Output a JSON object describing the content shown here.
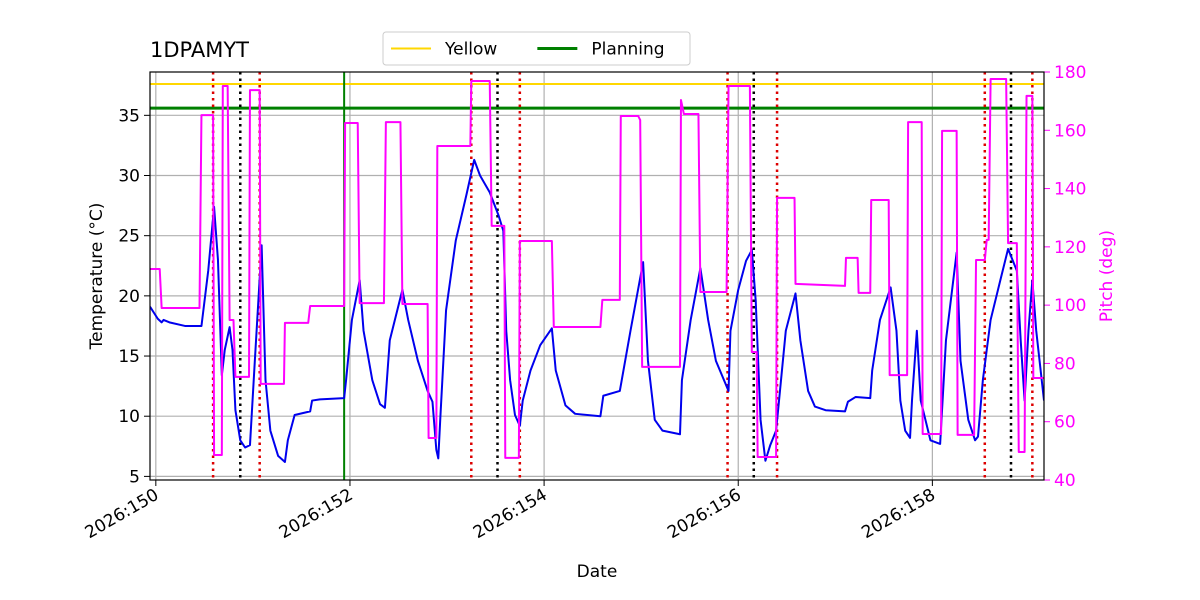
{
  "chart_data": {
    "type": "line",
    "title": "1DPAMYT",
    "xlabel": "Date",
    "ylabel": "Temperature (°C)",
    "y2label": "Pitch (deg)",
    "xlim": [
      149.94,
      159.15
    ],
    "xticks": [
      {
        "value": 150,
        "label": "2026:150"
      },
      {
        "value": 152,
        "label": "2026:152"
      },
      {
        "value": 154,
        "label": "2026:154"
      },
      {
        "value": 156,
        "label": "2026:156"
      },
      {
        "value": 158,
        "label": "2026:158"
      }
    ],
    "ylim": [
      4.7,
      38.6
    ],
    "yticks": [
      5,
      10,
      15,
      20,
      25,
      30,
      35
    ],
    "y2lim": [
      40,
      180
    ],
    "y2ticks": [
      40,
      60,
      80,
      100,
      120,
      140,
      160,
      180
    ],
    "y2color": "#ff00ff",
    "grid": true,
    "legend": "upper center",
    "hlines": [
      {
        "name": "Yellow",
        "value": 37.6,
        "color": "#ffd700",
        "width": 2
      },
      {
        "name": "Planning",
        "value": 35.6,
        "color": "#008000",
        "width": 3
      }
    ],
    "vlines": [
      {
        "x": 151.94,
        "color": "#008000",
        "style": "solid"
      },
      {
        "x": 150.59,
        "color": "#dd0000",
        "style": "dotted"
      },
      {
        "x": 151.07,
        "color": "#dd0000",
        "style": "dotted"
      },
      {
        "x": 153.25,
        "color": "#dd0000",
        "style": "dotted"
      },
      {
        "x": 153.75,
        "color": "#dd0000",
        "style": "dotted"
      },
      {
        "x": 155.89,
        "color": "#dd0000",
        "style": "dotted"
      },
      {
        "x": 156.4,
        "color": "#dd0000",
        "style": "dotted"
      },
      {
        "x": 158.54,
        "color": "#dd0000",
        "style": "dotted"
      },
      {
        "x": 159.03,
        "color": "#dd0000",
        "style": "dotted"
      },
      {
        "x": 150.87,
        "color": "#000000",
        "style": "dotted"
      },
      {
        "x": 153.52,
        "color": "#000000",
        "style": "dotted"
      },
      {
        "x": 156.16,
        "color": "#000000",
        "style": "dotted"
      },
      {
        "x": 158.81,
        "color": "#000000",
        "style": "dotted"
      }
    ],
    "series": [
      {
        "color": "#0000ee",
        "x": [
          149.94,
          150.02,
          150.06,
          150.08,
          150.14,
          150.3,
          150.47,
          150.54,
          150.6,
          150.64,
          150.68,
          150.71,
          150.76,
          150.79,
          150.82,
          150.87,
          150.92,
          150.97,
          151.02,
          151.09,
          151.13,
          151.18,
          151.26,
          151.33,
          151.36,
          151.43,
          151.59,
          151.61,
          151.69,
          151.94,
          151.96,
          152.02,
          152.1,
          152.14,
          152.23,
          152.31,
          152.36,
          152.41,
          152.54,
          152.6,
          152.7,
          152.8,
          152.85,
          152.89,
          152.91,
          152.93,
          152.99,
          153.09,
          153.2,
          153.28,
          153.34,
          153.44,
          153.53,
          153.58,
          153.61,
          153.65,
          153.7,
          153.75,
          153.78,
          153.86,
          153.96,
          154.08,
          154.12,
          154.22,
          154.32,
          154.58,
          154.61,
          154.78,
          154.8,
          154.89,
          155.02,
          155.07,
          155.14,
          155.22,
          155.4,
          155.42,
          155.51,
          155.61,
          155.69,
          155.77,
          155.9,
          155.92,
          156.0,
          156.08,
          156.14,
          156.18,
          156.23,
          156.28,
          156.33,
          156.39,
          156.43,
          156.49,
          156.59,
          156.64,
          156.72,
          156.79,
          156.9,
          157.1,
          157.13,
          157.21,
          157.36,
          157.38,
          157.46,
          157.57,
          157.63,
          157.67,
          157.72,
          157.77,
          157.79,
          157.84,
          157.88,
          157.98,
          158.08,
          158.14,
          158.25,
          158.29,
          158.37,
          158.44,
          158.47,
          158.52,
          158.6,
          158.7,
          158.78,
          158.87,
          158.91,
          158.95,
          158.99,
          159.03,
          159.07,
          159.15
        ],
        "values": [
          19.1,
          18.1,
          17.8,
          18.0,
          17.8,
          17.5,
          17.5,
          22.1,
          27.4,
          23.0,
          13.4,
          15.5,
          17.4,
          15.5,
          10.5,
          8.0,
          7.4,
          7.6,
          14.6,
          24.2,
          13.0,
          8.8,
          6.7,
          6.2,
          8.0,
          10.1,
          10.4,
          11.3,
          11.4,
          11.5,
          13.0,
          18.0,
          21.3,
          17.1,
          13.0,
          11.0,
          10.7,
          16.3,
          20.5,
          18.0,
          14.6,
          12.1,
          11.2,
          7.2,
          6.5,
          9.7,
          18.8,
          24.6,
          28.4,
          31.3,
          30.0,
          28.6,
          26.7,
          25.4,
          17.1,
          13.0,
          10.1,
          9.2,
          11.3,
          13.8,
          15.9,
          17.3,
          13.8,
          10.9,
          10.2,
          10.0,
          11.7,
          12.1,
          13.0,
          17.1,
          22.8,
          14.6,
          9.7,
          8.8,
          8.5,
          13.0,
          18.0,
          22.3,
          18.0,
          14.6,
          12.1,
          17.1,
          20.5,
          22.9,
          23.8,
          19.6,
          9.7,
          6.3,
          7.6,
          8.8,
          12.1,
          17.1,
          20.2,
          16.3,
          12.1,
          10.8,
          10.5,
          10.4,
          11.2,
          11.6,
          11.5,
          13.8,
          18.0,
          20.7,
          17.1,
          11.3,
          8.8,
          8.2,
          11.3,
          17.1,
          11.3,
          8.0,
          7.7,
          16.3,
          23.6,
          14.6,
          9.7,
          8.0,
          8.3,
          13.0,
          18.0,
          21.3,
          23.9,
          22.1,
          16.3,
          11.3,
          17.1,
          21.3,
          17.1,
          11.3
        ]
      },
      {
        "color": "#ff00ff",
        "axis": "y2",
        "x": [
          149.94,
          150.04,
          150.06,
          150.45,
          150.47,
          150.59,
          150.6,
          150.68,
          150.69,
          150.74,
          150.76,
          150.8,
          150.82,
          150.96,
          150.97,
          151.07,
          151.08,
          151.32,
          151.33,
          151.57,
          151.59,
          151.94,
          151.95,
          152.08,
          152.1,
          152.35,
          152.37,
          152.52,
          152.54,
          152.8,
          152.81,
          152.89,
          152.9,
          153.24,
          153.25,
          153.44,
          153.46,
          153.59,
          153.6,
          153.74,
          153.75,
          154.08,
          154.1,
          154.58,
          154.6,
          154.78,
          154.79,
          154.97,
          154.99,
          155.01,
          155.4,
          155.41,
          155.44,
          155.59,
          155.61,
          155.88,
          155.9,
          156.12,
          156.14,
          156.19,
          156.2,
          156.39,
          156.4,
          156.58,
          156.59,
          157.1,
          157.11,
          157.23,
          157.24,
          157.36,
          157.37,
          157.55,
          157.56,
          157.74,
          157.75,
          157.89,
          157.9,
          158.09,
          158.1,
          158.25,
          158.26,
          158.43,
          158.45,
          158.54,
          158.56,
          158.58,
          158.6,
          158.76,
          158.78,
          158.87,
          158.89,
          158.95,
          158.97,
          159.03,
          159.04,
          159.15
        ],
        "values": [
          112.4,
          112.4,
          99.0,
          99.0,
          165.2,
          165.2,
          48.6,
          48.6,
          175.2,
          175.2,
          94.9,
          94.9,
          75.4,
          75.4,
          173.8,
          173.8,
          73.0,
          73.0,
          93.9,
          93.9,
          99.7,
          99.7,
          162.5,
          162.5,
          100.7,
          100.7,
          162.8,
          162.8,
          100.4,
          100.4,
          54.4,
          54.4,
          154.6,
          154.6,
          176.9,
          176.9,
          127.2,
          127.2,
          47.6,
          47.6,
          122.0,
          122.0,
          92.5,
          92.5,
          101.8,
          101.8,
          164.9,
          164.9,
          163.5,
          78.8,
          78.8,
          170.4,
          165.6,
          165.6,
          104.5,
          104.5,
          175.2,
          175.2,
          83.9,
          83.9,
          47.9,
          47.9,
          136.8,
          136.8,
          107.3,
          106.6,
          116.2,
          116.2,
          104.2,
          104.2,
          136.1,
          136.1,
          76.0,
          76.0,
          162.8,
          162.8,
          55.8,
          55.8,
          159.8,
          159.8,
          55.5,
          55.5,
          115.5,
          115.5,
          122.4,
          122.4,
          177.6,
          177.6,
          121.3,
          121.3,
          49.6,
          49.6,
          171.8,
          171.8,
          75.0,
          75.0
        ]
      }
    ]
  }
}
